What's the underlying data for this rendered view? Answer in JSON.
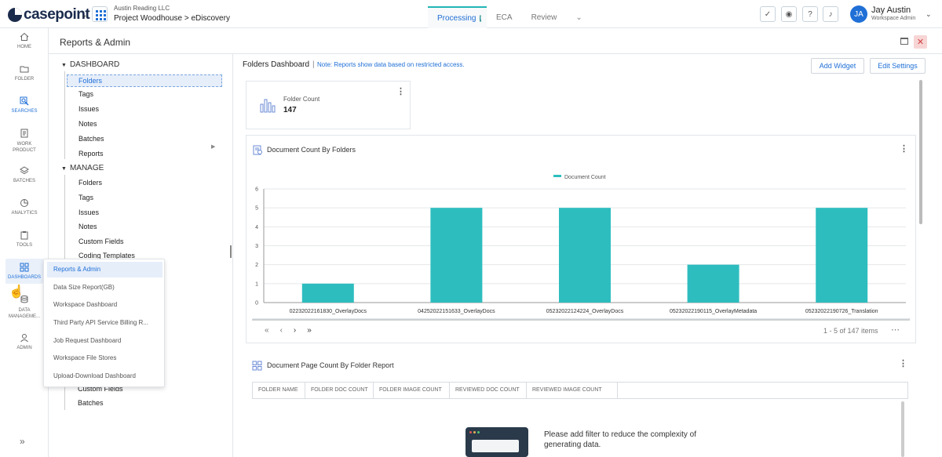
{
  "app": {
    "logo_text": "casepoint",
    "org": "Austin Reading LLC",
    "project": "Project Woodhouse > eDiscovery"
  },
  "tabs": [
    {
      "label": "Processing",
      "active": true
    },
    {
      "label": "ECA",
      "active": false
    },
    {
      "label": "Review",
      "active": false
    }
  ],
  "user": {
    "initials": "JA",
    "name": "Jay Austin",
    "role": "Workspace Admin"
  },
  "nav": [
    {
      "label": "HOME",
      "icon": "home-icon"
    },
    {
      "label": "FOLDER",
      "icon": "folder-icon"
    },
    {
      "label": "SEARCHES",
      "icon": "search-icon"
    },
    {
      "label": "WORK PRODUCT",
      "icon": "document-icon"
    },
    {
      "label": "BATCHES",
      "icon": "layers-icon"
    },
    {
      "label": "ANALYTICS",
      "icon": "pie-chart-icon"
    },
    {
      "label": "TOOLS",
      "icon": "clipboard-icon"
    },
    {
      "label": "DASHBOARDS",
      "icon": "grid-icon"
    },
    {
      "label": "DATA MANAGEME...",
      "icon": "database-icon"
    },
    {
      "label": "ADMIN",
      "icon": "user-icon"
    }
  ],
  "page": {
    "title": "Reports & Admin"
  },
  "tree": {
    "dashboard_label": "DASHBOARD",
    "dashboard_items": [
      "Folders",
      "Tags",
      "Issues",
      "Notes",
      "Batches",
      "Reports"
    ],
    "manage_label": "MANAGE",
    "manage_items": [
      "Folders",
      "Tags",
      "Issues",
      "Notes",
      "Custom Fields",
      "Coding Templates"
    ],
    "bottom_items": [
      "Custom Fields",
      "Batches"
    ]
  },
  "flyout": [
    "Reports & Admin",
    "Data Size Report(GB)",
    "Workspace Dashboard",
    "Third Party API Service Billing R...",
    "Job Request Dashboard",
    "Workspace File Stores",
    "Upload-Download Dashboard"
  ],
  "dashboard": {
    "title": "Folders Dashboard",
    "separator": "|",
    "note": "Note: Reports show data based on restricted access.",
    "add_widget": "Add Widget",
    "edit_settings": "Edit Settings"
  },
  "folder_count": {
    "label": "Folder Count",
    "value": "147"
  },
  "doc_widget": {
    "title": "Document Count By Folders",
    "pager_info": "1 - 5 of 147 items"
  },
  "chart_data": {
    "type": "bar",
    "categories": [
      "02232022161830_OverlayDocs",
      "04252022151633_OverlayDocs",
      "05232022124224_OverlayDocs",
      "05232022190115_OverlayMetadata",
      "05232022190726_Translation"
    ],
    "series": [
      {
        "name": "Document Count",
        "values": [
          1,
          5,
          5,
          2,
          5
        ]
      }
    ],
    "ylim": [
      0,
      6
    ],
    "yticks": [
      0,
      1,
      2,
      3,
      4,
      5,
      6
    ],
    "legend_position": "top",
    "grid": true,
    "color": "#2ebdbf"
  },
  "page_widget": {
    "title": "Document Page Count By Folder Report",
    "columns": [
      "FOLDER NAME",
      "FOLDER DOC COUNT",
      "FOLDER IMAGE COUNT",
      "REVIEWED DOC COUNT",
      "REVIEWED IMAGE COUNT"
    ],
    "empty_message": "Please add filter to reduce the complexity of generating data."
  }
}
